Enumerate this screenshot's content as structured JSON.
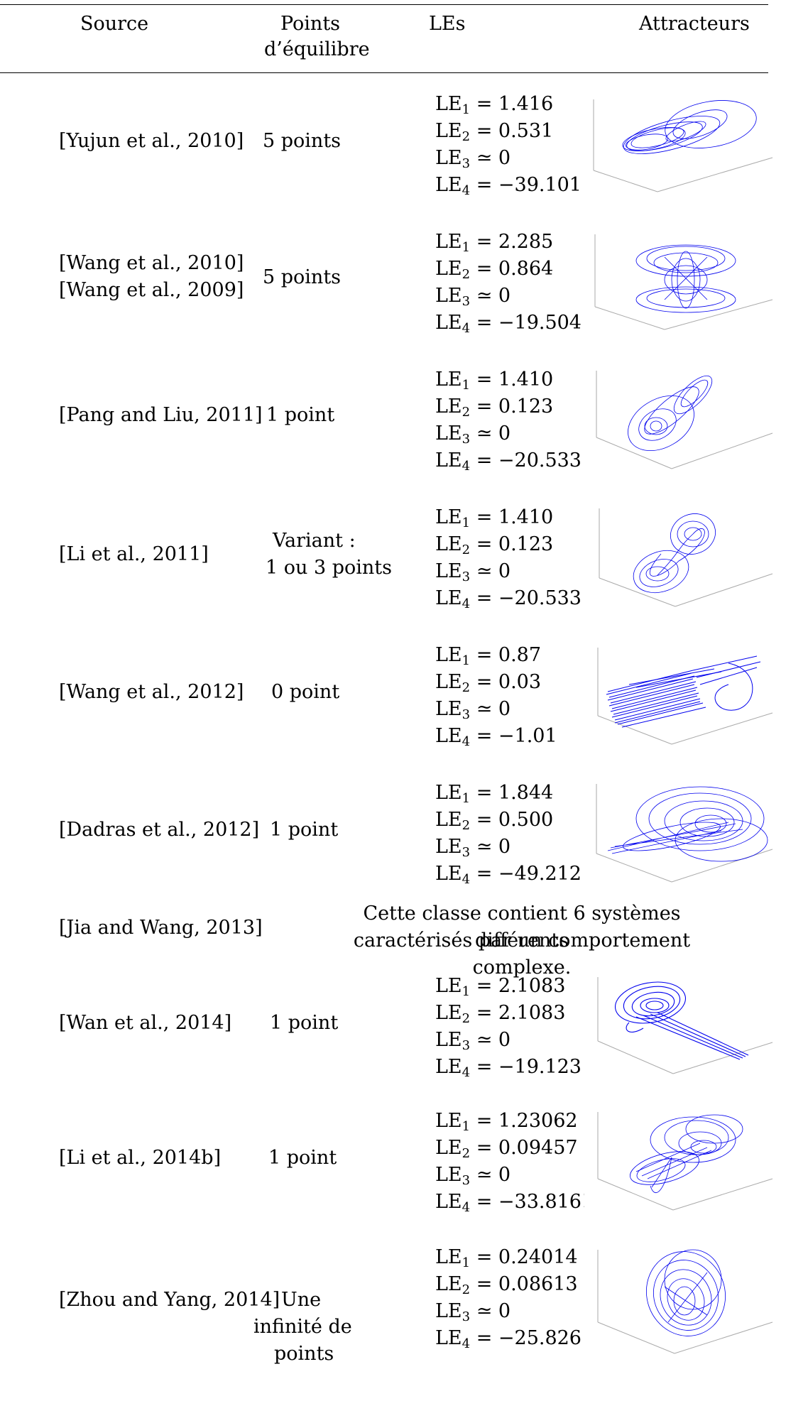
{
  "header": {
    "source": "Source",
    "points": "Points d’équilibre",
    "les": "LEs",
    "attractors": "Attracteurs"
  },
  "rows": [
    {
      "source": "[Yujun et al., 2010]",
      "points": "5 points",
      "les": [
        {
          "sub": "1",
          "value": "= 1.416"
        },
        {
          "sub": "2",
          "value": "= 0.531"
        },
        {
          "sub": "3",
          "value": "≃ 0"
        },
        {
          "sub": "4",
          "value": "= −39.101"
        }
      ]
    },
    {
      "source": "[Wang et al., 2010]",
      "source2": "[Wang et al., 2009]",
      "points": "5 points",
      "les": [
        {
          "sub": "1",
          "value": "= 2.285"
        },
        {
          "sub": "2",
          "value": "= 0.864"
        },
        {
          "sub": "3",
          "value": "≃ 0"
        },
        {
          "sub": "4",
          "value": "= −19.504"
        }
      ]
    },
    {
      "source": "[Pang and Liu, 2011]",
      "points": "1 point",
      "les": [
        {
          "sub": "1",
          "value": "= 1.410"
        },
        {
          "sub": "2",
          "value": "= 0.123"
        },
        {
          "sub": "3",
          "value": "≃ 0"
        },
        {
          "sub": "4",
          "value": "= −20.533"
        }
      ]
    },
    {
      "source": "[Li et al., 2011]",
      "points": "Variant :",
      "points2": "1 ou 3 points",
      "les": [
        {
          "sub": "1",
          "value": "= 1.410"
        },
        {
          "sub": "2",
          "value": "= 0.123"
        },
        {
          "sub": "3",
          "value": "≃ 0"
        },
        {
          "sub": "4",
          "value": "= −20.533"
        }
      ]
    },
    {
      "source": "[Wang et al., 2012]",
      "points": "0 point",
      "les": [
        {
          "sub": "1",
          "value": "= 0.87"
        },
        {
          "sub": "2",
          "value": "= 0.03"
        },
        {
          "sub": "3",
          "value": "≃ 0"
        },
        {
          "sub": "4",
          "value": "= −1.01"
        }
      ]
    },
    {
      "source": "[Dadras et al., 2012]",
      "points": "1 point",
      "les": [
        {
          "sub": "1",
          "value": "= 1.844"
        },
        {
          "sub": "2",
          "value": "= 0.500"
        },
        {
          "sub": "3",
          "value": "≃ 0"
        },
        {
          "sub": "4",
          "value": "= −49.212"
        }
      ]
    },
    {
      "source": "[Jia and Wang, 2013]",
      "note": "Cette classe contient 6 systèmes différents",
      "note2": "caractérisés par un comportement complexe."
    },
    {
      "source": "[Wan et al., 2014]",
      "points": "1 point",
      "les": [
        {
          "sub": "1",
          "value": "= 2.1083"
        },
        {
          "sub": "2",
          "value": "= 2.1083"
        },
        {
          "sub": "3",
          "value": "≃ 0"
        },
        {
          "sub": "4",
          "value": "= −19.123"
        }
      ]
    },
    {
      "source": "[Li et al., 2014b]",
      "points": "1 point",
      "les": [
        {
          "sub": "1",
          "value": "= 1.23062"
        },
        {
          "sub": "2",
          "value": "= 0.09457"
        },
        {
          "sub": "3",
          "value": "≃ 0"
        },
        {
          "sub": "4",
          "value": "= −33.816!"
        }
      ]
    },
    {
      "source": "[Zhou and Yang, 2014]",
      "points": "Une",
      "points2": "infinité de",
      "points3": "points",
      "les": [
        {
          "sub": "1",
          "value": "= 0.24014"
        },
        {
          "sub": "2",
          "value": "= 0.08613"
        },
        {
          "sub": "3",
          "value": "≃ 0"
        },
        {
          "sub": "4",
          "value": "= −25.826"
        }
      ]
    }
  ],
  "le_prefix": "LE",
  "colors": {
    "attractor": "#0000ee",
    "axis": "#aaaaaa"
  }
}
